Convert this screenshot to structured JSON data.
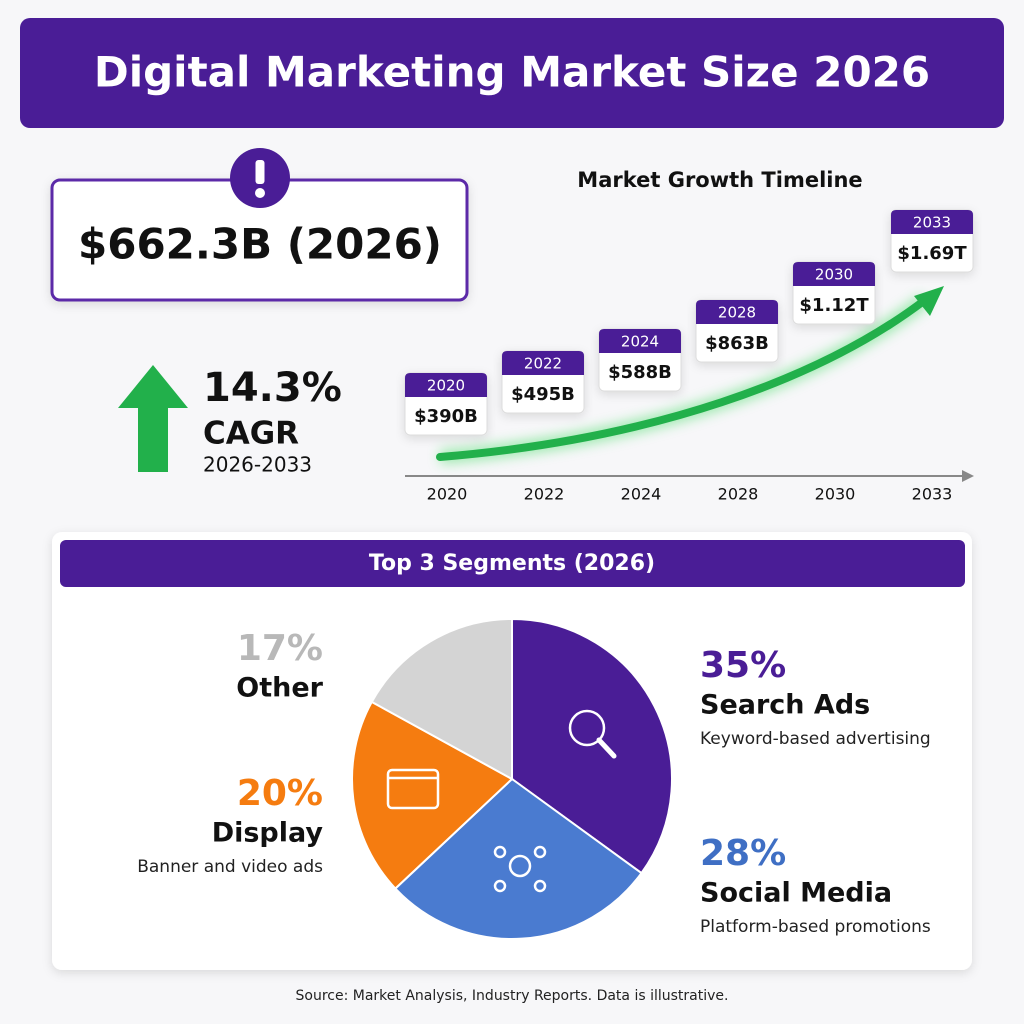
{
  "header": {
    "title": "Digital Marketing Market Size 2026"
  },
  "highlight": {
    "value": "$662.3B (2026)"
  },
  "cagr": {
    "rate": "14.3%",
    "label": "CAGR",
    "period": "2026-2033"
  },
  "timeline": {
    "title": "Market Growth Timeline",
    "points": [
      {
        "year": "2020",
        "value": "$390B"
      },
      {
        "year": "2022",
        "value": "$495B"
      },
      {
        "year": "2024",
        "value": "$588B"
      },
      {
        "year": "2028",
        "value": "$863B"
      },
      {
        "year": "2030",
        "value": "$1.12T"
      },
      {
        "year": "2033",
        "value": "$1.69T"
      }
    ]
  },
  "chart_data": {
    "type": "pie",
    "title": "Top 3 Segments (2026)",
    "categories": [
      "Search Ads",
      "Social Media",
      "Display",
      "Other"
    ],
    "values": [
      35,
      28,
      20,
      17
    ],
    "value_labels": [
      "35%",
      "28%",
      "20%",
      "17%"
    ],
    "descriptions": [
      "Keyword-based advertising",
      "Platform-based promotions",
      "Banner and video ads",
      null
    ],
    "colors": [
      "#4a1d96",
      "#4a7bd0",
      "#f57c10",
      "#d4d4d4"
    ],
    "label_colors": [
      "#4a1d96",
      "#3f6fc4",
      "#f57c10",
      "#b8b8b8"
    ]
  },
  "footer": {
    "source": "Source: Market Analysis, Industry Reports. Data is illustrative."
  }
}
